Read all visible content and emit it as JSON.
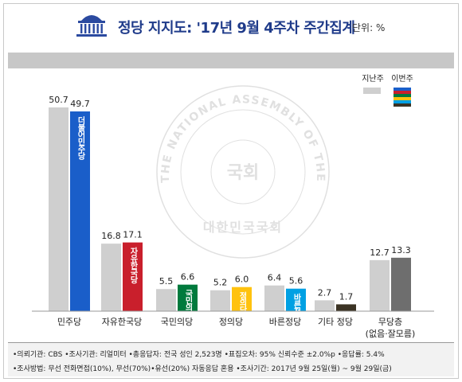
{
  "header": {
    "title": "정당 지지도: '17년 9월 4주차 주간집계",
    "unit": "단위: %"
  },
  "watermark": {
    "ring_text": "THE NATIONAL ASSEMBLY OF THE REPUBLIC OF KOREA",
    "center_text": "국회",
    "bottom_text": "대한민국국회"
  },
  "colors": {
    "prev_week": "#cfcfcf",
    "minjoo": "#1a5ec9",
    "liberty": "#c91f2c",
    "people": "#007a3d",
    "justice": "#ffc20e",
    "bareun": "#00a0e3",
    "other": "#3b3324",
    "none": "#6e6e6e"
  },
  "chart_data": {
    "type": "bar",
    "title": "정당 지지도: '17년 9월 4주차 주간집계",
    "unit": "단위: %",
    "categories": [
      "민주당",
      "자유한국당",
      "국민의당",
      "정의당",
      "바른정당",
      "기타 정당",
      "무당층"
    ],
    "category_sublabels": [
      "",
      "",
      "",
      "",
      "",
      "",
      "(없음·잘모름)"
    ],
    "series": [
      {
        "name": "지난주",
        "values": [
          50.7,
          16.8,
          5.5,
          5.2,
          6.4,
          2.7,
          12.7
        ]
      },
      {
        "name": "이번주",
        "values": [
          49.7,
          17.1,
          6.6,
          6.0,
          5.6,
          1.7,
          13.3
        ]
      }
    ],
    "bar_logo_texts": [
      "더불어민주당",
      "자유한국당",
      "국민의당",
      "정의당",
      "바른정당",
      "",
      ""
    ],
    "ylim": [
      0,
      55
    ],
    "legend_position": "top-right",
    "grid": false
  },
  "footer": {
    "line1": "•의뢰기관: CBS  •조사기관: 리얼미터  •총응답자: 전국 성인 2,523명  •표집오차: 95% 신뢰수준 ±2.0%p  •응답률: 5.4%",
    "line2": "•조사방법: 무선 전화면접(10%), 무선(70%)•유선(20%) 자동응답 혼용  •조사기간: 2017년 9월 25일(월) ~ 9월 29일(금)"
  }
}
